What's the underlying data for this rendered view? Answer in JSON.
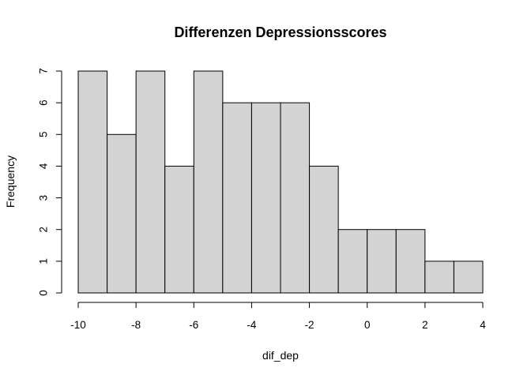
{
  "chart_data": {
    "type": "bar",
    "subtype": "histogram",
    "title": "Differenzen Depressionsscores",
    "xlabel": "dif_dep",
    "ylabel": "Frequency",
    "bins": [
      {
        "start": -10,
        "end": -9,
        "count": 7
      },
      {
        "start": -9,
        "end": -8,
        "count": 5
      },
      {
        "start": -8,
        "end": -7,
        "count": 7
      },
      {
        "start": -7,
        "end": -6,
        "count": 4
      },
      {
        "start": -6,
        "end": -5,
        "count": 7
      },
      {
        "start": -5,
        "end": -4,
        "count": 6
      },
      {
        "start": -4,
        "end": -3,
        "count": 6
      },
      {
        "start": -3,
        "end": -2,
        "count": 6
      },
      {
        "start": -2,
        "end": -1,
        "count": 4
      },
      {
        "start": -1,
        "end": 0,
        "count": 2
      },
      {
        "start": 0,
        "end": 1,
        "count": 2
      },
      {
        "start": 1,
        "end": 2,
        "count": 2
      },
      {
        "start": 2,
        "end": 3,
        "count": 1
      },
      {
        "start": 3,
        "end": 4,
        "count": 1
      }
    ],
    "xlim": [
      -10,
      4
    ],
    "ylim": [
      0,
      7
    ],
    "x_ticks": [
      "-10",
      "-8",
      "-6",
      "-4",
      "-2",
      "0",
      "2",
      "4"
    ],
    "y_ticks": [
      "0",
      "1",
      "2",
      "3",
      "4",
      "5",
      "6",
      "7"
    ],
    "bar_color": "#d3d3d3",
    "grid": false,
    "legend": false
  }
}
